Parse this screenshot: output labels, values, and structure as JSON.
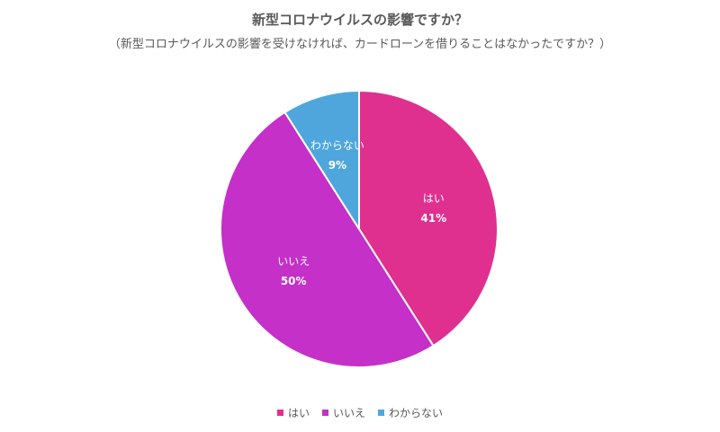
{
  "chart_data": {
    "type": "pie",
    "title": "新型コロナウイルスの影響ですか？",
    "subtitle": "（新型コロナウイルスの影響を受けなければ、カードローンを借りることはなかったですか？）",
    "categories": [
      "はい",
      "いいえ",
      "わからない"
    ],
    "values": [
      41,
      50,
      9
    ],
    "value_labels": [
      "41%",
      "50%",
      "9%"
    ],
    "colors": [
      "#E0308F",
      "#C430C8",
      "#4EA6DC"
    ],
    "legend_position": "bottom",
    "start_angle": "top",
    "direction": "clockwise"
  }
}
